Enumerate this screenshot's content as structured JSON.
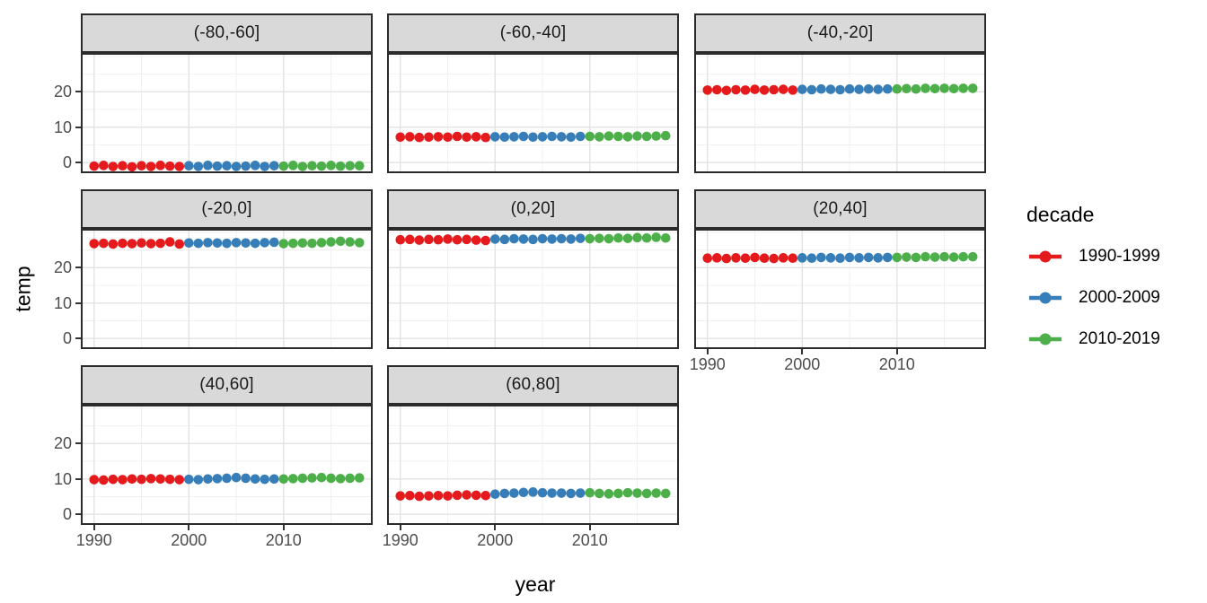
{
  "chart_data": {
    "type": "scatter",
    "title": "",
    "xlabel": "year",
    "ylabel": "temp",
    "legend_title": "decade",
    "legend_position": "right",
    "grid": true,
    "x_ticks": [
      1990,
      2000,
      2010
    ],
    "x_minor_ticks": [
      1995,
      2005,
      2015
    ],
    "y_ticks": [
      0,
      10,
      20
    ],
    "y_minor_ticks": [
      5,
      15,
      25,
      30
    ],
    "xlim": [
      1988.6,
      2019.4
    ],
    "ylim": [
      -3,
      31
    ],
    "years": [
      1990,
      1991,
      1992,
      1993,
      1994,
      1995,
      1996,
      1997,
      1998,
      1999,
      2000,
      2001,
      2002,
      2003,
      2004,
      2005,
      2006,
      2007,
      2008,
      2009,
      2010,
      2011,
      2012,
      2013,
      2014,
      2015,
      2016,
      2017,
      2018
    ],
    "decades": [
      {
        "label": "1990-1999",
        "color": "#E41A1C",
        "from": 1990,
        "to": 1999
      },
      {
        "label": "2000-2009",
        "color": "#377EB8",
        "from": 2000,
        "to": 2009
      },
      {
        "label": "2010-2019",
        "color": "#4DAF4A",
        "from": 2010,
        "to": 2019
      }
    ],
    "facets": [
      {
        "label": "(-80,-60]",
        "values": [
          -1.0,
          -0.8,
          -1.1,
          -0.9,
          -1.2,
          -0.9,
          -1.1,
          -0.8,
          -1.0,
          -1.1,
          -0.9,
          -1.1,
          -0.8,
          -1.0,
          -0.9,
          -1.1,
          -1.0,
          -0.8,
          -1.1,
          -0.9,
          -1.0,
          -0.8,
          -1.1,
          -0.9,
          -1.0,
          -0.8,
          -1.0,
          -0.9,
          -0.9
        ]
      },
      {
        "label": "(-60,-40]",
        "values": [
          7.2,
          7.3,
          7.1,
          7.2,
          7.3,
          7.2,
          7.4,
          7.2,
          7.3,
          7.1,
          7.3,
          7.2,
          7.3,
          7.4,
          7.2,
          7.3,
          7.4,
          7.3,
          7.2,
          7.4,
          7.4,
          7.3,
          7.5,
          7.4,
          7.3,
          7.5,
          7.4,
          7.5,
          7.6
        ]
      },
      {
        "label": "(-40,-20]",
        "values": [
          20.5,
          20.6,
          20.4,
          20.6,
          20.5,
          20.7,
          20.5,
          20.6,
          20.7,
          20.5,
          20.7,
          20.6,
          20.8,
          20.7,
          20.6,
          20.8,
          20.7,
          20.8,
          20.7,
          20.8,
          20.8,
          20.9,
          20.8,
          21.0,
          20.9,
          21.0,
          20.9,
          21.0,
          21.0
        ]
      },
      {
        "label": "(-20,0]",
        "values": [
          26.8,
          26.9,
          26.7,
          26.9,
          26.8,
          27.0,
          26.8,
          26.9,
          27.3,
          26.7,
          27.0,
          26.9,
          27.1,
          27.0,
          26.9,
          27.1,
          27.0,
          26.9,
          27.1,
          27.2,
          26.8,
          26.9,
          27.0,
          26.9,
          27.1,
          27.3,
          27.5,
          27.3,
          27.1
        ]
      },
      {
        "label": "(0,20]",
        "values": [
          27.9,
          28.0,
          27.8,
          28.0,
          27.9,
          28.1,
          27.9,
          28.0,
          27.8,
          27.7,
          28.1,
          28.0,
          28.2,
          28.1,
          28.0,
          28.2,
          28.1,
          28.2,
          28.1,
          28.3,
          28.2,
          28.3,
          28.2,
          28.4,
          28.3,
          28.5,
          28.4,
          28.6,
          28.4
        ]
      },
      {
        "label": "(20,40]",
        "values": [
          22.7,
          22.8,
          22.6,
          22.8,
          22.7,
          22.9,
          22.7,
          22.6,
          22.8,
          22.7,
          22.8,
          22.7,
          22.9,
          22.8,
          22.7,
          22.9,
          22.8,
          22.9,
          22.8,
          22.9,
          22.9,
          23.0,
          22.9,
          23.1,
          23.0,
          23.1,
          23.0,
          23.1,
          23.1
        ]
      },
      {
        "label": "(40,60]",
        "values": [
          9.8,
          9.7,
          9.9,
          9.8,
          10.0,
          9.9,
          10.1,
          10.0,
          9.9,
          9.8,
          9.9,
          9.8,
          10.0,
          10.1,
          10.2,
          10.4,
          10.2,
          10.0,
          9.9,
          10.0,
          10.0,
          10.1,
          10.2,
          10.3,
          10.4,
          10.2,
          10.1,
          10.2,
          10.3
        ]
      },
      {
        "label": "(60,80]",
        "values": [
          5.2,
          5.3,
          5.1,
          5.2,
          5.3,
          5.2,
          5.4,
          5.5,
          5.4,
          5.3,
          5.7,
          5.9,
          6.0,
          6.2,
          6.3,
          6.1,
          6.0,
          6.0,
          5.9,
          6.0,
          6.1,
          5.9,
          5.8,
          5.9,
          6.1,
          6.0,
          5.9,
          6.0,
          5.9
        ]
      }
    ],
    "colors": {
      "strip_background": "#D9D9D9",
      "panel_border": "#2B2B2B",
      "grid_major": "#E3E3E3",
      "grid_minor": "#F0F0F0",
      "tick_text": "#4D4D4D",
      "panel_background": "#FFFFFF"
    }
  }
}
